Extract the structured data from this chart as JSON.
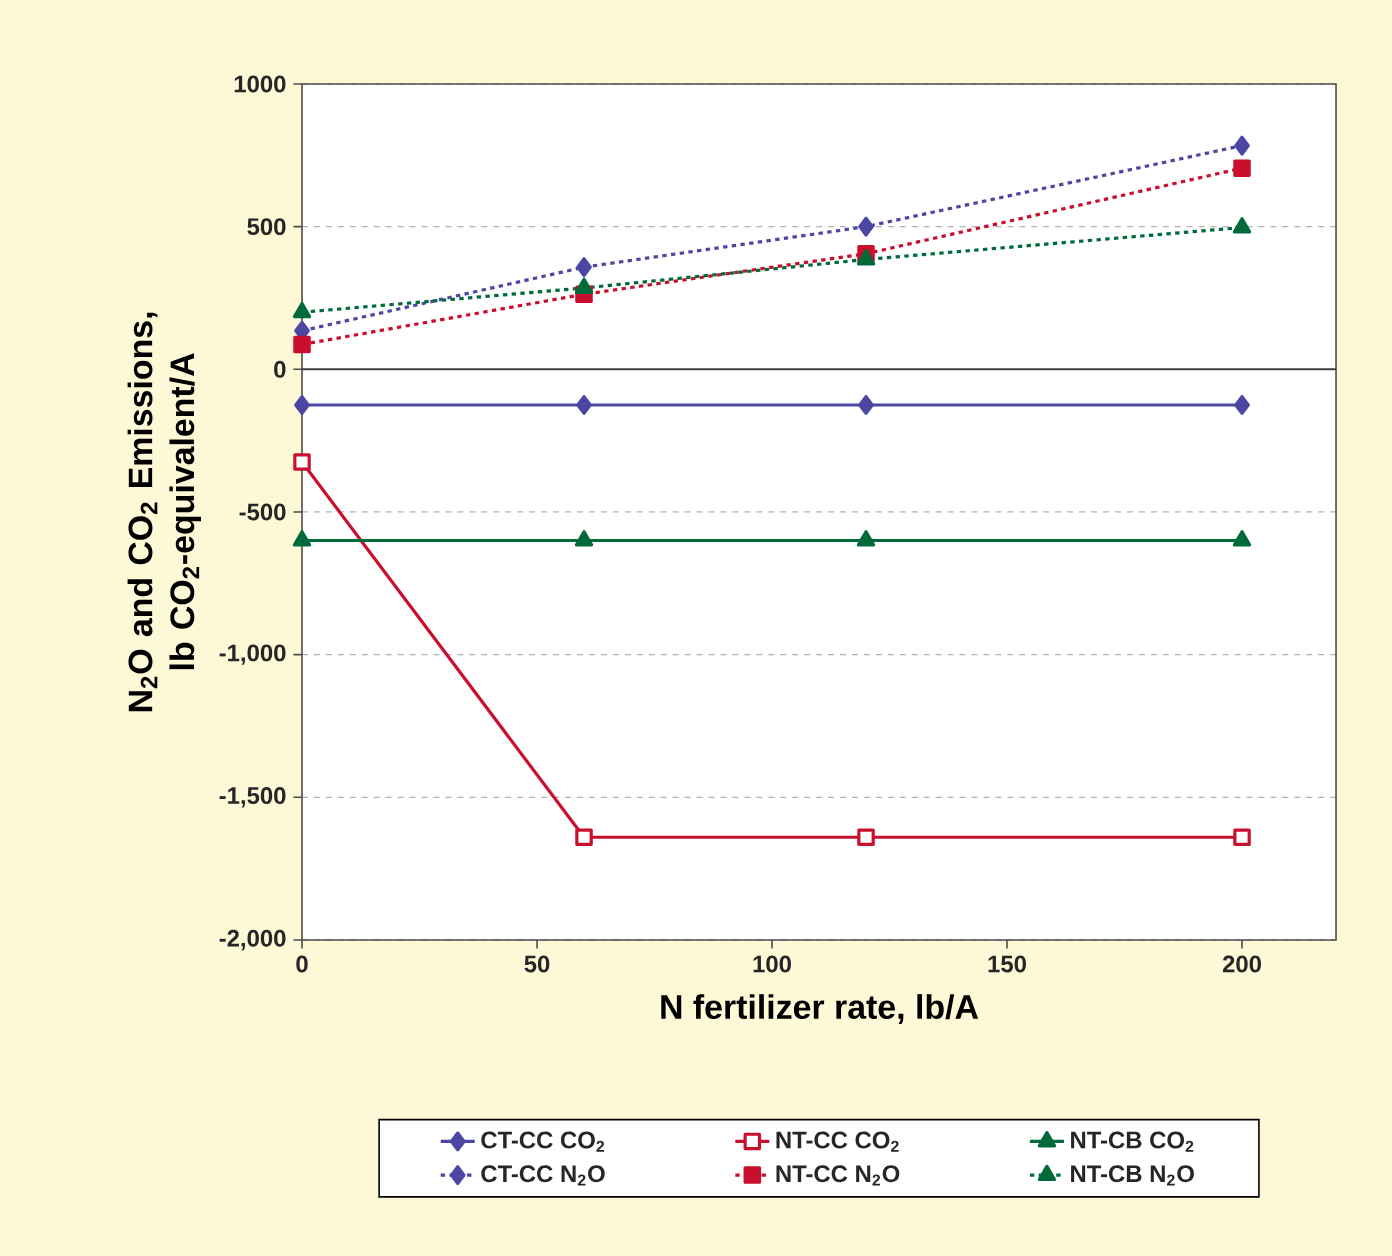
{
  "chart_data": {
    "type": "line",
    "xlabel": "N fertilizer rate, lb/A",
    "ylabel": "N$_{2}$O and CO$_{2}$ Emissions, lb CO$_{2}$-equivalent/A",
    "x": [
      0,
      60,
      120,
      200
    ],
    "series": [
      {
        "name": "CT-CC CO$_{2}$",
        "color": "#4b47a3",
        "values": [
          -125,
          -125,
          -125,
          -125
        ],
        "marker": "diamond",
        "line_style": "solid"
      },
      {
        "name": "NT-CC CO$_{2}$",
        "color": "#c8102e",
        "values": [
          -325,
          -1640,
          -1640,
          -1640
        ],
        "marker": "square-open",
        "line_style": "solid"
      },
      {
        "name": "NT-CB CO$_{2}$",
        "color": "#006b3a",
        "values": [
          -600,
          -600,
          -600,
          -600
        ],
        "marker": "triangle",
        "line_style": "solid"
      },
      {
        "name": "CT-CC N$_{2}$O",
        "color": "#4b47a3",
        "values": [
          135,
          358,
          500,
          784
        ],
        "marker": "diamond",
        "line_style": "dotted"
      },
      {
        "name": "NT-CC N$_{2}$O",
        "color": "#c8102e",
        "values": [
          87,
          263,
          405,
          705
        ],
        "marker": "square",
        "line_style": "dotted"
      },
      {
        "name": "NT-CB N$_{2}$O",
        "color": "#006b3a",
        "values": [
          200,
          285,
          385,
          497
        ],
        "marker": "triangle",
        "line_style": "dotted"
      }
    ],
    "xlim": [
      0,
      220
    ],
    "xticks": [
      0,
      50,
      100,
      150,
      200
    ],
    "ylim": [
      -2000,
      1000
    ],
    "yticks": [
      {
        "value": -2000,
        "label": "-2,000"
      },
      {
        "value": -1500,
        "label": "-1,500"
      },
      {
        "value": -1000,
        "label": "-1,000"
      },
      -500,
      0,
      500,
      1000
    ],
    "ref_lines": [
      {
        "axis": "y",
        "value": 0,
        "color": "#404040"
      }
    ],
    "grid": "y",
    "legend": "bottom"
  }
}
